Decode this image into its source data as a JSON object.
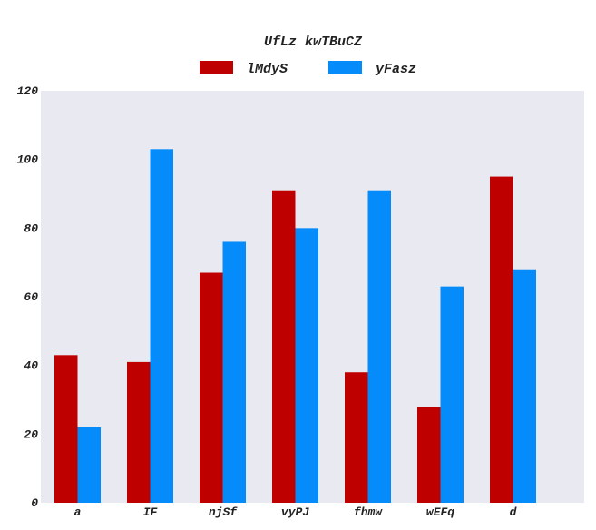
{
  "chart_data": {
    "type": "bar",
    "title": "UfLz kwTBuCZ",
    "xlabel": "",
    "ylabel": "",
    "categories": [
      "a",
      "IF",
      "njSf",
      "vyPJ",
      "fhmw",
      "wEFq",
      "d"
    ],
    "series": [
      {
        "name": "lMdyS",
        "values": [
          43,
          41,
          67,
          91,
          38,
          28,
          95
        ],
        "color": "#bf0000"
      },
      {
        "name": "yFasz",
        "values": [
          22,
          103,
          76,
          80,
          91,
          63,
          68
        ],
        "color": "#068cfa"
      }
    ],
    "ylim": [
      0,
      120
    ],
    "yticks": [
      0,
      20,
      40,
      60,
      80,
      100,
      120
    ],
    "grid": false,
    "legend_position": "top-center",
    "plot_background": "#e8e9f1"
  }
}
